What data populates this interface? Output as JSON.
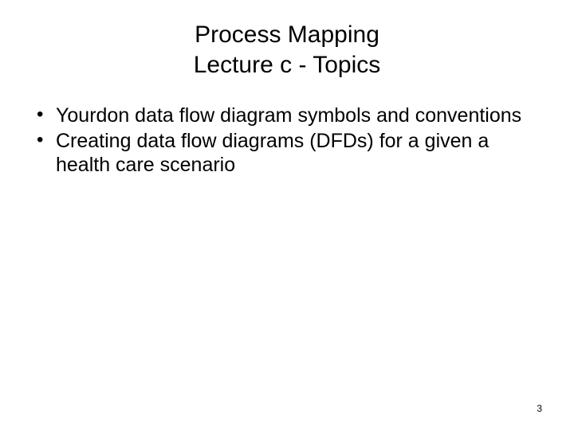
{
  "slide": {
    "title_line1": "Process Mapping",
    "title_line2": "Lecture c - Topics",
    "title_fontsize": 30,
    "title_color": "#000000",
    "bullets": [
      "Yourdon data flow diagram symbols and conventions",
      "Creating data flow diagrams (DFDs) for a given a health care scenario"
    ],
    "bullet_fontsize": 25,
    "bullet_color": "#000000",
    "page_number": "3",
    "page_number_fontsize": 12,
    "background_color": "#ffffff"
  }
}
